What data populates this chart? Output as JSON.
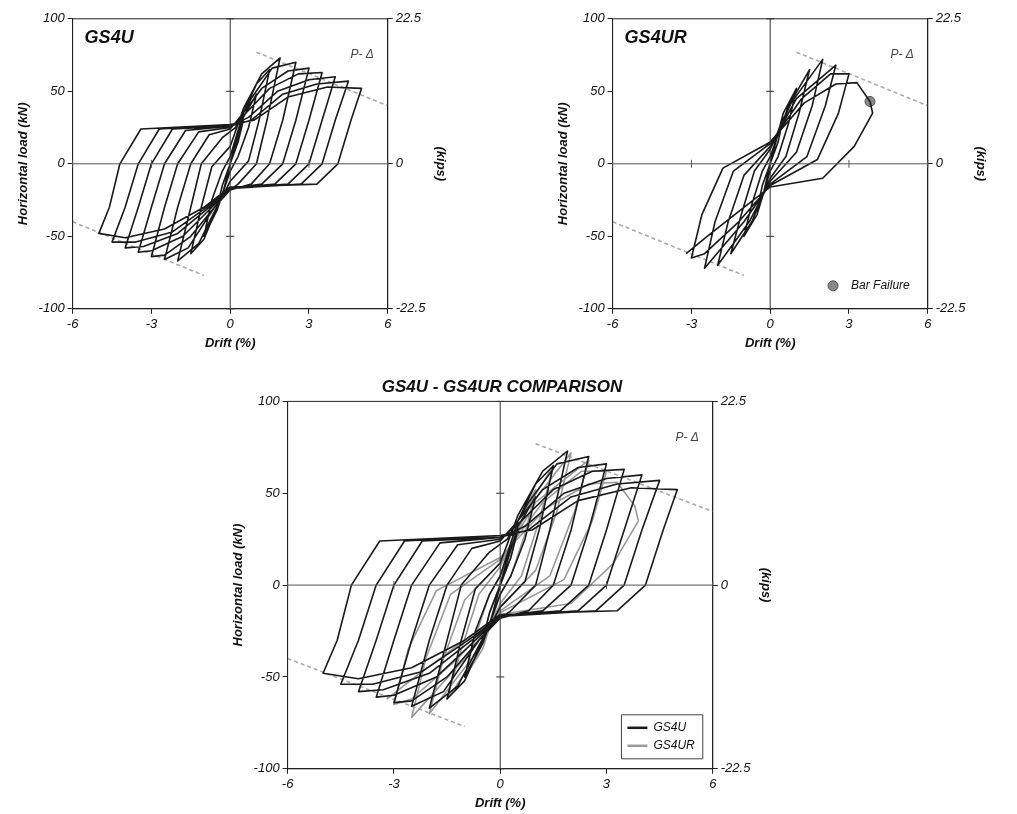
{
  "chart_data": [
    {
      "type": "line",
      "xlabel": "Drift (%)",
      "ylabel": "Horizontal load (kN)",
      "y2label": "(kips)",
      "xlim": [
        -6,
        6
      ],
      "xticks": [
        -6,
        -3,
        0,
        3,
        6
      ],
      "ylim": [
        -100,
        100
      ],
      "yticks": [
        -100,
        -50,
        0,
        50,
        100
      ],
      "y2lim": [
        -22.5,
        22.5
      ],
      "y2ticks": [
        -22.5,
        0,
        22.5
      ],
      "grid": false,
      "marker": "none",
      "annotations": [
        "GS4U",
        "P- Δ"
      ],
      "ref_lines": [
        {
          "axis": "x",
          "value": 0,
          "color": "#333333"
        },
        {
          "axis": "y",
          "value": 0,
          "color": "#555555"
        }
      ],
      "series": [
        {
          "color": "#1a1a1a",
          "x": [
            0,
            0.25,
            0.5,
            0.3,
            0,
            -0.25,
            -0.5,
            -0.3,
            0,
            0.5,
            1,
            0.7,
            0.3,
            0,
            -0.5,
            -1,
            -0.7,
            -0.3,
            0,
            0.5,
            1,
            1.5,
            1.1,
            0.7,
            0,
            -0.5,
            -1,
            -1.5,
            -1.1,
            -0.7,
            0,
            0.5,
            1.2,
            1.9,
            1.4,
            1,
            0.3,
            -0.3,
            -1.2,
            -2,
            -1.5,
            -1.1,
            -0.3,
            0.2,
            0.8,
            1.6,
            2.5,
            2,
            1.5,
            0.8,
            0,
            -0.6,
            -1.6,
            -2.5,
            -2,
            -1.5,
            -0.8,
            0,
            0.5,
            1.2,
            2.2,
            3,
            2.5,
            2,
            1.2,
            0,
            -0.6,
            -1.5,
            -2.5,
            -3,
            -2.5,
            -2,
            -1.2,
            0,
            0.6,
            1.5,
            2.6,
            3.5,
            3,
            2.5,
            1.7,
            0,
            -0.7,
            -1.8,
            -3,
            -3.5,
            -3,
            -2.5,
            -1.7,
            0,
            0.7,
            1.8,
            3,
            4,
            3.5,
            3,
            2.2,
            0,
            -0.8,
            -2,
            -3.3,
            -4,
            -3.5,
            -3,
            -2.2,
            0,
            0.8,
            2,
            3.3,
            4.5,
            4,
            3.5,
            2.7,
            0,
            -0.9,
            -2.2,
            -3.6,
            -4.5,
            -4,
            -3.5,
            -2.7,
            0,
            0.9,
            2.2,
            3.7,
            5,
            4.6,
            4.1,
            3.3,
            0,
            -1,
            -2.5,
            -4,
            -5,
            -4.6,
            -4.2,
            -3.4,
            0
          ],
          "values": [
            0,
            18,
            30,
            15,
            0,
            -18,
            -30,
            -15,
            0,
            32,
            48,
            25,
            5,
            -5,
            -32,
            -50,
            -25,
            -5,
            5,
            35,
            55,
            65,
            30,
            2,
            -12,
            -30,
            -52,
            -62,
            -30,
            -2,
            12,
            38,
            62,
            73,
            30,
            0,
            -14,
            -22,
            -55,
            -67,
            -30,
            0,
            18,
            25,
            45,
            66,
            70,
            30,
            0,
            -14,
            -18,
            -30,
            -58,
            -66,
            -30,
            0,
            20,
            24,
            35,
            52,
            64,
            66,
            30,
            0,
            -14,
            -17,
            -30,
            -50,
            -63,
            -64,
            -30,
            0,
            22,
            25,
            35,
            52,
            62,
            63,
            30,
            0,
            -14,
            -17,
            -30,
            -50,
            -60,
            -61,
            -30,
            0,
            23,
            26,
            32,
            50,
            58,
            60,
            30,
            0,
            -14,
            -17,
            -30,
            -48,
            -57,
            -58,
            -30,
            0,
            24,
            26,
            30,
            48,
            55,
            57,
            30,
            0,
            -14,
            -17,
            -30,
            -47,
            -54,
            -54,
            -30,
            0,
            24,
            27,
            30,
            46,
            53,
            52,
            30,
            0,
            -14,
            -16,
            -30,
            -45,
            -51,
            -48,
            -30,
            0,
            24,
            27
          ]
        },
        {
          "color": "#aaaaaa",
          "line_style": "dashed",
          "x": [
            1,
            6
          ],
          "values": [
            77,
            40
          ]
        },
        {
          "color": "#aaaaaa",
          "line_style": "dashed",
          "x": [
            -6,
            -1
          ],
          "values": [
            -40,
            -77
          ]
        }
      ]
    },
    {
      "type": "line",
      "xlabel": "Drift (%)",
      "ylabel": "Horizontal load (kN)",
      "y2label": "(kips)",
      "xlim": [
        -6,
        6
      ],
      "xticks": [
        -6,
        -3,
        0,
        3,
        6
      ],
      "ylim": [
        -100,
        100
      ],
      "yticks": [
        -100,
        -50,
        0,
        50,
        100
      ],
      "y2lim": [
        -22.5,
        22.5
      ],
      "y2ticks": [
        -22.5,
        0,
        22.5
      ],
      "grid": false,
      "marker": "none",
      "legend": "bottom right",
      "annotations": [
        "GS4UR",
        "P- Δ"
      ],
      "ref_lines": [
        {
          "axis": "x",
          "value": 0,
          "color": "#333333"
        },
        {
          "axis": "y",
          "value": 0,
          "color": "#555555"
        }
      ],
      "series": [
        {
          "color": "#1a1a1a",
          "x": [
            0,
            0.25,
            0.5,
            0.3,
            0,
            -0.25,
            -0.5,
            -0.3,
            0,
            0.5,
            1,
            0.7,
            0.3,
            0,
            -0.5,
            -1,
            -0.7,
            -0.3,
            0,
            0.7,
            1.5,
            1.1,
            0.6,
            0,
            -0.7,
            -1.5,
            -1.1,
            -0.6,
            0,
            0.8,
            2,
            1.6,
            1,
            0,
            -0.8,
            -2,
            -1.6,
            -1,
            0,
            1,
            2.5,
            2.1,
            1.4,
            0,
            -1,
            -2.5,
            -2.1,
            -1.4,
            0,
            1.2,
            2.3,
            3,
            2.6,
            1.8,
            0,
            -1.2,
            -2.5,
            -3,
            -2.6,
            -1.8,
            0,
            1.3,
            2.5,
            3.3,
            3.8,
            3.9,
            3.2,
            2,
            0,
            -1,
            -2.4,
            -3.2
          ],
          "values": [
            0,
            20,
            32,
            15,
            0,
            -20,
            -32,
            -15,
            0,
            35,
            52,
            28,
            5,
            -5,
            -35,
            -50,
            -28,
            -5,
            5,
            40,
            65,
            35,
            5,
            -10,
            -40,
            -62,
            -35,
            -5,
            10,
            42,
            72,
            40,
            8,
            -12,
            -40,
            -70,
            -40,
            -8,
            12,
            45,
            68,
            40,
            5,
            -14,
            -40,
            -72,
            -40,
            -5,
            14,
            45,
            62,
            62,
            35,
            3,
            -15,
            -40,
            -62,
            -65,
            -35,
            -3,
            15,
            42,
            55,
            56,
            43,
            35,
            12,
            -10,
            -16,
            -30,
            -50,
            -62
          ]
        },
        {
          "color": "#aaaaaa",
          "line_style": "dashed",
          "x": [
            1,
            6
          ],
          "values": [
            77,
            40
          ]
        },
        {
          "color": "#aaaaaa",
          "line_style": "dashed",
          "x": [
            -6,
            -1
          ],
          "values": [
            -40,
            -77
          ]
        },
        {
          "type": "scatter",
          "name": "Bar Failure",
          "color": "#888888",
          "marker": "circle",
          "x": [
            3.8
          ],
          "values": [
            43
          ]
        }
      ]
    },
    {
      "type": "line",
      "title": "GS4U - GS4UR COMPARISON",
      "xlabel": "Drift (%)",
      "ylabel": "Horizontal load (kN)",
      "y2label": "(kips)",
      "xlim": [
        -6,
        6
      ],
      "xticks": [
        -6,
        -3,
        0,
        3,
        6
      ],
      "ylim": [
        -100,
        100
      ],
      "yticks": [
        -100,
        -50,
        0,
        50,
        100
      ],
      "y2lim": [
        -22.5,
        22.5
      ],
      "y2ticks": [
        -22.5,
        0,
        22.5
      ],
      "grid": false,
      "marker": "none",
      "legend": "bottom right",
      "annotations": [
        "P- Δ"
      ],
      "ref_lines": [
        {
          "axis": "x",
          "value": 0,
          "color": "#333333"
        },
        {
          "axis": "y",
          "value": 0,
          "color": "#555555"
        }
      ],
      "series": [
        {
          "name": "GS4U",
          "color": "#1a1a1a",
          "x": [
            0,
            0.25,
            0.5,
            0.3,
            0,
            -0.25,
            -0.5,
            -0.3,
            0,
            0.5,
            1,
            0.7,
            0.3,
            0,
            -0.5,
            -1,
            -0.7,
            -0.3,
            0,
            0.5,
            1,
            1.5,
            1.1,
            0.7,
            0,
            -0.5,
            -1,
            -1.5,
            -1.1,
            -0.7,
            0,
            0.5,
            1.2,
            1.9,
            1.4,
            1,
            0.3,
            -0.3,
            -1.2,
            -2,
            -1.5,
            -1.1,
            -0.3,
            0.2,
            0.8,
            1.6,
            2.5,
            2,
            1.5,
            0.8,
            0,
            -0.6,
            -1.6,
            -2.5,
            -2,
            -1.5,
            -0.8,
            0,
            0.5,
            1.2,
            2.2,
            3,
            2.5,
            2,
            1.2,
            0,
            -0.6,
            -1.5,
            -2.5,
            -3,
            -2.5,
            -2,
            -1.2,
            0,
            0.6,
            1.5,
            2.6,
            3.5,
            3,
            2.5,
            1.7,
            0,
            -0.7,
            -1.8,
            -3,
            -3.5,
            -3,
            -2.5,
            -1.7,
            0,
            0.7,
            1.8,
            3,
            4,
            3.5,
            3,
            2.2,
            0,
            -0.8,
            -2,
            -3.3,
            -4,
            -3.5,
            -3,
            -2.2,
            0,
            0.8,
            2,
            3.3,
            4.5,
            4,
            3.5,
            2.7,
            0,
            -0.9,
            -2.2,
            -3.6,
            -4.5,
            -4,
            -3.5,
            -2.7,
            0,
            0.9,
            2.2,
            3.7,
            5,
            4.6,
            4.1,
            3.3,
            0,
            -1,
            -2.5,
            -4,
            -5,
            -4.6,
            -4.2,
            -3.4,
            0
          ],
          "values": [
            0,
            18,
            30,
            15,
            0,
            -18,
            -30,
            -15,
            0,
            32,
            48,
            25,
            5,
            -5,
            -32,
            -50,
            -25,
            -5,
            5,
            35,
            55,
            65,
            30,
            2,
            -12,
            -30,
            -52,
            -62,
            -30,
            -2,
            12,
            38,
            62,
            73,
            30,
            0,
            -14,
            -22,
            -55,
            -67,
            -30,
            0,
            18,
            25,
            45,
            66,
            70,
            30,
            0,
            -14,
            -18,
            -30,
            -58,
            -66,
            -30,
            0,
            20,
            24,
            35,
            52,
            64,
            66,
            30,
            0,
            -14,
            -17,
            -30,
            -50,
            -63,
            -64,
            -30,
            0,
            22,
            25,
            35,
            52,
            62,
            63,
            30,
            0,
            -14,
            -17,
            -30,
            -50,
            -60,
            -61,
            -30,
            0,
            23,
            26,
            32,
            50,
            58,
            60,
            30,
            0,
            -14,
            -17,
            -30,
            -48,
            -57,
            -58,
            -30,
            0,
            24,
            26,
            30,
            48,
            55,
            57,
            30,
            0,
            -14,
            -17,
            -30,
            -47,
            -54,
            -54,
            -30,
            0,
            24,
            27,
            30,
            46,
            53,
            52,
            30,
            0,
            -14,
            -16,
            -30,
            -45,
            -51,
            -48,
            -30,
            0,
            24,
            27
          ]
        },
        {
          "name": "GS4UR",
          "color": "#999999",
          "x": [
            0,
            0.25,
            0.5,
            0.3,
            0,
            -0.25,
            -0.5,
            -0.3,
            0,
            0.5,
            1,
            0.7,
            0.3,
            0,
            -0.5,
            -1,
            -0.7,
            -0.3,
            0,
            0.7,
            1.5,
            1.1,
            0.6,
            0,
            -0.7,
            -1.5,
            -1.1,
            -0.6,
            0,
            0.8,
            2,
            1.6,
            1,
            0,
            -0.8,
            -2,
            -1.6,
            -1,
            0,
            1,
            2.5,
            2.1,
            1.4,
            0,
            -1,
            -2.5,
            -2.1,
            -1.4,
            0,
            1.2,
            2.3,
            3,
            2.6,
            1.8,
            0,
            -1.2,
            -2.5,
            -3,
            -2.6,
            -1.8,
            0,
            1.3,
            2.5,
            3.3,
            3.8,
            3.9,
            3.2,
            2,
            0,
            -1,
            -2.4,
            -3.2
          ],
          "values": [
            0,
            20,
            32,
            15,
            0,
            -20,
            -32,
            -15,
            0,
            35,
            52,
            28,
            5,
            -5,
            -35,
            -50,
            -28,
            -5,
            5,
            40,
            65,
            35,
            5,
            -10,
            -40,
            -62,
            -35,
            -5,
            10,
            42,
            72,
            40,
            8,
            -12,
            -40,
            -70,
            -40,
            -8,
            12,
            45,
            68,
            40,
            5,
            -14,
            -40,
            -72,
            -40,
            -5,
            14,
            45,
            62,
            62,
            35,
            3,
            -15,
            -40,
            -62,
            -65,
            -35,
            -3,
            15,
            42,
            55,
            56,
            43,
            35,
            12,
            -10,
            -16,
            -30,
            -50,
            -62
          ]
        },
        {
          "color": "#aaaaaa",
          "line_style": "dashed",
          "x": [
            1,
            6
          ],
          "values": [
            77,
            40
          ]
        },
        {
          "color": "#aaaaaa",
          "line_style": "dashed",
          "x": [
            -6,
            -1
          ],
          "values": [
            -40,
            -77
          ]
        }
      ]
    }
  ]
}
